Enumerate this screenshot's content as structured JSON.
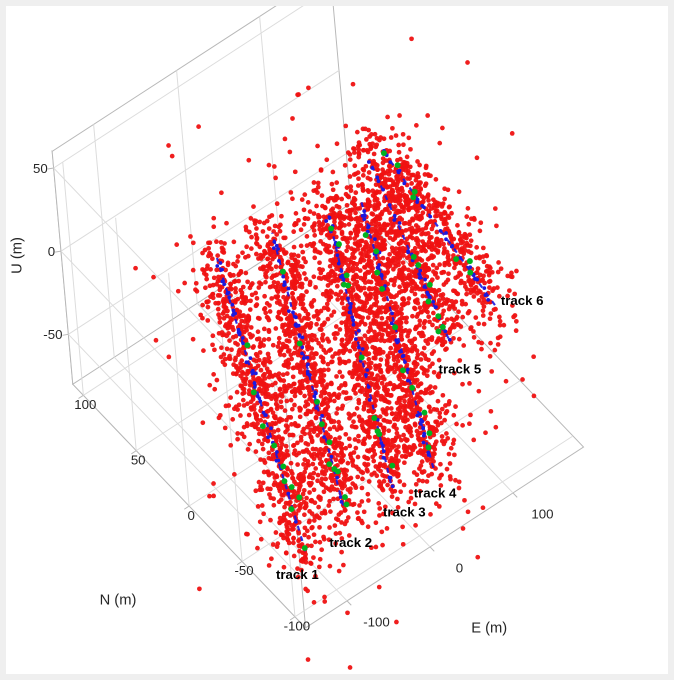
{
  "figure": {
    "background": "#ffffff",
    "plot_background": "#ffffff"
  },
  "chart_data": {
    "type": "scatter",
    "subtype": "3d-scatter",
    "title": "",
    "grid": true,
    "legend": null,
    "axes": {
      "e": {
        "label": "E (m)",
        "min": -150,
        "max": 185,
        "ticks": [
          -100,
          0,
          100
        ]
      },
      "n": {
        "label": "N (m)",
        "min": -110,
        "max": 110,
        "ticks": [
          -100,
          -50,
          0,
          50,
          100
        ]
      },
      "u": {
        "label": "U (m)",
        "min": -80,
        "max": 60,
        "ticks": [
          -50,
          0,
          50
        ]
      }
    },
    "colors": {
      "measurements": "#ef1212",
      "track_line": "#1a1ae0",
      "track_marker": "#00b321",
      "grid": "#dcdcdc",
      "axis": "#b8b8b8",
      "tick_text": "#262626",
      "track_label": "#000000"
    },
    "series": {
      "measurements": {
        "name": "measurement points",
        "color": "#ef1212",
        "marker": "dot",
        "count_per_track": [
          850,
          850,
          850,
          850,
          520,
          480
        ],
        "spread_m": 11,
        "outlier_fraction": 0.12,
        "outlier_spread_m": 28,
        "far_outlier_fraction": 0.02,
        "far_outlier_spread_m": 60
      },
      "tracks": [
        {
          "label": "track 1",
          "start_enu": [
            -115,
            -85,
            -62
          ],
          "end_enu": [
            -55,
            35,
            15
          ]
        },
        {
          "label": "track 2",
          "start_enu": [
            -62,
            -80,
            -55
          ],
          "end_enu": [
            5,
            30,
            14
          ]
        },
        {
          "label": "track 3",
          "start_enu": [
            0,
            -75,
            -65
          ],
          "end_enu": [
            65,
            25,
            10
          ]
        },
        {
          "label": "track 4",
          "start_enu": [
            50,
            -75,
            -72
          ],
          "end_enu": [
            100,
            22,
            10
          ]
        },
        {
          "label": "track 5",
          "start_enu": [
            135,
            -25,
            -55
          ],
          "end_enu": [
            130,
            35,
            12
          ]
        },
        {
          "label": "track 6",
          "start_enu": [
            175,
            -40,
            -38
          ],
          "end_enu": [
            150,
            40,
            10
          ]
        }
      ]
    },
    "seed": 20
  }
}
